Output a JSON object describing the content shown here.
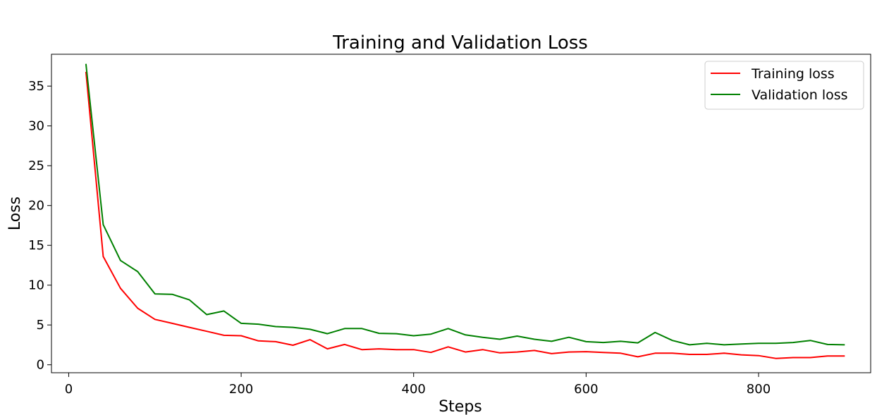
{
  "chart_data": {
    "type": "line",
    "title": "Training and Validation Loss",
    "xlabel": "Steps",
    "ylabel": "Loss",
    "xlim": [
      -20,
      930
    ],
    "ylim": [
      -1,
      39
    ],
    "xticks": [
      0,
      200,
      400,
      600,
      800
    ],
    "yticks": [
      0,
      5,
      10,
      15,
      20,
      25,
      30,
      35
    ],
    "legend_position": "top-right",
    "grid": false,
    "x": [
      20,
      40,
      60,
      80,
      100,
      120,
      140,
      160,
      180,
      200,
      220,
      240,
      260,
      280,
      300,
      320,
      340,
      360,
      380,
      400,
      420,
      440,
      460,
      480,
      500,
      520,
      540,
      560,
      580,
      600,
      620,
      640,
      660,
      680,
      700,
      720,
      740,
      760,
      780,
      800,
      820,
      840,
      860,
      880,
      900
    ],
    "series": [
      {
        "name": "Training loss",
        "color": "#ff0000",
        "values": [
          36.8,
          13.6,
          9.6,
          7.1,
          5.7,
          5.2,
          4.7,
          4.2,
          3.7,
          3.65,
          3.0,
          2.9,
          2.45,
          3.15,
          2.0,
          2.55,
          1.9,
          2.0,
          1.9,
          1.9,
          1.55,
          2.25,
          1.6,
          1.9,
          1.5,
          1.6,
          1.8,
          1.4,
          1.6,
          1.65,
          1.55,
          1.45,
          1.0,
          1.45,
          1.45,
          1.3,
          1.3,
          1.45,
          1.25,
          1.15,
          0.8,
          0.9,
          0.9,
          1.1,
          1.1
        ]
      },
      {
        "name": "Validation loss",
        "color": "#008000",
        "values": [
          37.8,
          17.6,
          13.1,
          11.7,
          8.9,
          8.85,
          8.15,
          6.3,
          6.75,
          5.2,
          5.1,
          4.8,
          4.7,
          4.45,
          3.9,
          4.55,
          4.55,
          3.95,
          3.9,
          3.65,
          3.85,
          4.55,
          3.75,
          3.45,
          3.2,
          3.6,
          3.2,
          2.95,
          3.45,
          2.9,
          2.8,
          2.95,
          2.75,
          4.05,
          3.05,
          2.5,
          2.7,
          2.5,
          2.6,
          2.7,
          2.7,
          2.8,
          3.05,
          2.55,
          2.5
        ]
      }
    ]
  }
}
